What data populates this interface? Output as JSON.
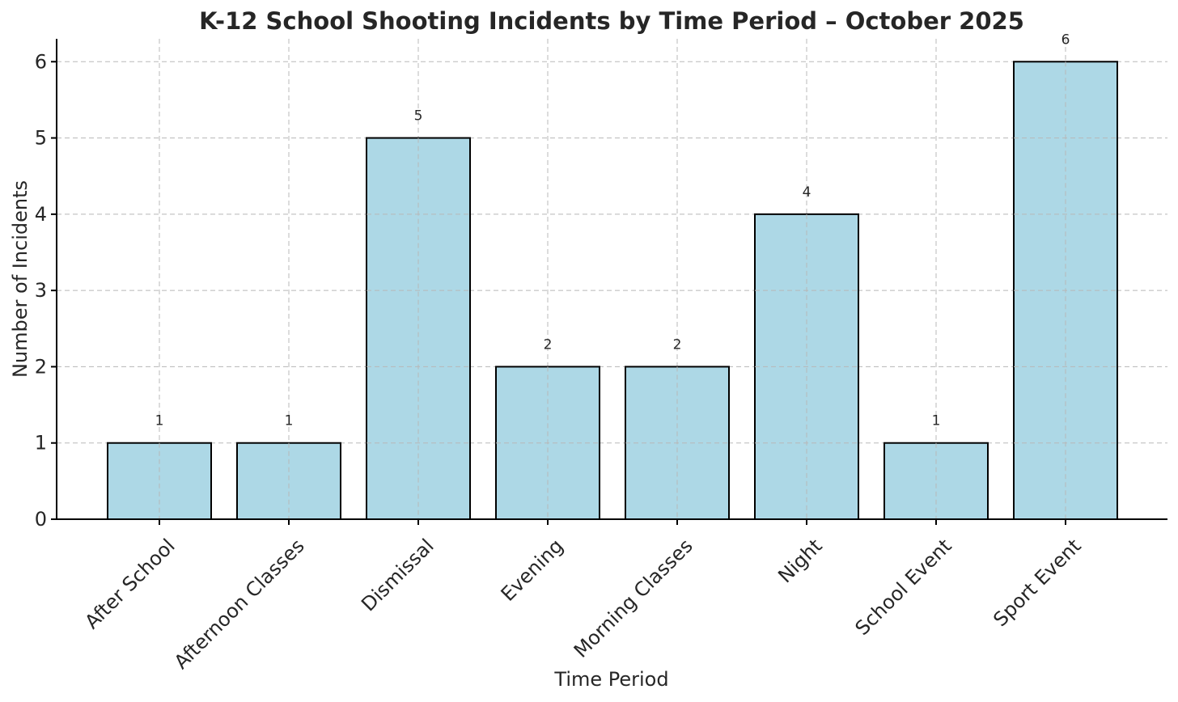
{
  "chart_data": {
    "type": "bar",
    "title": "K-12 School Shooting Incidents by Time Period – October 2025",
    "xlabel": "Time Period",
    "ylabel": "Number of Incidents",
    "categories": [
      "After School",
      "Afternoon Classes",
      "Dismissal",
      "Evening",
      "Morning Classes",
      "Night",
      "School Event",
      "Sport Event"
    ],
    "values": [
      1,
      1,
      5,
      2,
      2,
      4,
      1,
      6
    ],
    "ylim": [
      0,
      6.3
    ],
    "yticks": [
      0,
      1,
      2,
      3,
      4,
      5,
      6
    ],
    "grid": true,
    "bar_color": "#add8e6",
    "edge_color": "#000000"
  }
}
